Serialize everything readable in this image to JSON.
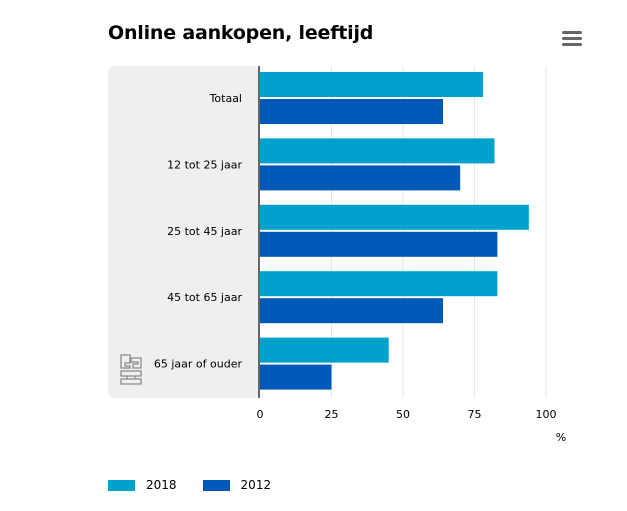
{
  "chart_data": {
    "type": "bar",
    "orientation": "horizontal",
    "title": "Online aankopen, leeftijd",
    "categories": [
      "Totaal",
      "12 tot 25 jaar",
      "25 tot 45 jaar",
      "45 tot 65 jaar",
      "65 jaar of ouder"
    ],
    "series": [
      {
        "name": "2018",
        "color": "#00a1cd",
        "values": [
          78,
          82,
          94,
          83,
          45
        ]
      },
      {
        "name": "2012",
        "color": "#0058b8",
        "values": [
          64,
          70,
          83,
          64,
          25
        ]
      }
    ],
    "xlabel": "%",
    "xlim": [
      0,
      100
    ],
    "xticks": [
      0,
      25,
      50,
      75,
      100
    ],
    "grid": true,
    "legend_position": "bottom-left"
  },
  "menu_icon": "hamburger-menu-icon",
  "logo_icon": "cbs-logo-icon",
  "colors": {
    "panel": "#efefef",
    "axis": "#666666",
    "grid": "#e6e6e6"
  }
}
